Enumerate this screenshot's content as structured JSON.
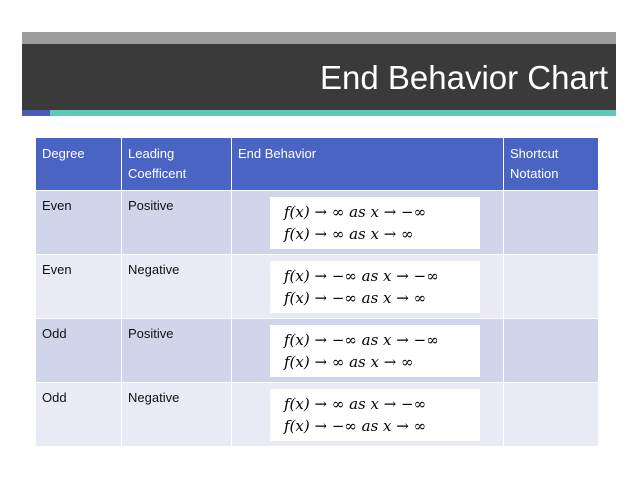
{
  "slide": {
    "title": "End Behavior Chart"
  },
  "table": {
    "headers": {
      "degree": "Degree",
      "leading": "Leading Coefficent",
      "end_behavior": "End Behavior",
      "shortcut": "Shortcut Notation"
    },
    "rows": [
      {
        "degree": "Even",
        "leading": "Positive",
        "line1": "f(x) → ∞ as x → −∞",
        "line2": "f(x) → ∞ as x → ∞",
        "shortcut": ""
      },
      {
        "degree": "Even",
        "leading": "Negative",
        "line1": "f(x) → −∞ as x → −∞",
        "line2": "f(x) → −∞ as x → ∞",
        "shortcut": ""
      },
      {
        "degree": "Odd",
        "leading": "Positive",
        "line1": "f(x) → −∞ as x → −∞",
        "line2": "f(x) → ∞ as x → ∞",
        "shortcut": ""
      },
      {
        "degree": "Odd",
        "leading": "Negative",
        "line1": "f(x) → ∞ as x → −∞",
        "line2": "f(x) → −∞ as x → ∞",
        "shortcut": ""
      }
    ]
  },
  "colors": {
    "title_bar": "#3a3a3a",
    "header_fill": "#4a64c4",
    "row_dark": "#d0d5ec",
    "row_light": "#e8eaf6",
    "accent_blue": "#4a5bb5",
    "accent_teal": "#5fc9b8"
  }
}
